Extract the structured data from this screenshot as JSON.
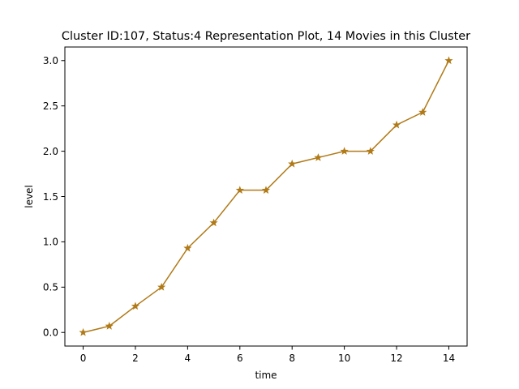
{
  "chart_data": {
    "type": "line",
    "title": "Cluster ID:107, Status:4 Representation Plot, 14 Movies in this Cluster",
    "xlabel": "time",
    "ylabel": "level",
    "xlim": [
      -0.7,
      14.7
    ],
    "ylim": [
      -0.15,
      3.15
    ],
    "xticks": [
      0,
      2,
      4,
      6,
      8,
      10,
      12,
      14
    ],
    "yticks": [
      0.0,
      0.5,
      1.0,
      1.5,
      2.0,
      2.5,
      3.0
    ],
    "xtick_labels": [
      "0",
      "2",
      "4",
      "6",
      "8",
      "10",
      "12",
      "14"
    ],
    "ytick_labels": [
      "0.0",
      "0.5",
      "1.0",
      "1.5",
      "2.0",
      "2.5",
      "3.0"
    ],
    "grid": false,
    "marker": "star",
    "color": "#b07a18",
    "series": [
      {
        "x": [
          0,
          1,
          2,
          3,
          4,
          5,
          6,
          7,
          8,
          9,
          10,
          11,
          12,
          13,
          14
        ],
        "y": [
          0.0,
          0.07,
          0.29,
          0.5,
          0.93,
          1.21,
          1.57,
          1.57,
          1.86,
          1.93,
          2.0,
          2.0,
          2.29,
          2.43,
          3.0
        ]
      }
    ]
  }
}
